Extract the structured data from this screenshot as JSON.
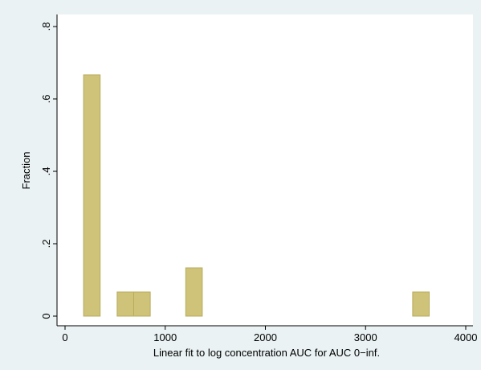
{
  "chart_data": {
    "type": "bar",
    "title": "",
    "xlabel": "Linear fit to log concentration AUC for AUC 0−inf.",
    "ylabel": "Fraction",
    "xlim": [
      0,
      4000
    ],
    "ylim": [
      0,
      0.8
    ],
    "x_ticks": [
      0,
      1000,
      2000,
      3000,
      4000
    ],
    "x_tick_labels": [
      "0",
      "1000",
      "2000",
      "3000",
      "4000"
    ],
    "y_ticks": [
      0,
      0.2,
      0.4,
      0.6,
      0.8
    ],
    "y_tick_labels": [
      "0",
      ".2",
      ".4",
      ".6",
      ".8"
    ],
    "grid": false,
    "legend": "none",
    "bin_width": 165,
    "bins": [
      {
        "start": 185,
        "value": 0.6667
      },
      {
        "start": 520,
        "value": 0.0667
      },
      {
        "start": 685,
        "value": 0.0667
      },
      {
        "start": 1205,
        "value": 0.1333
      },
      {
        "start": 3470,
        "value": 0.0667
      }
    ],
    "colors": {
      "bar_fill": "#cfc37a",
      "bar_stroke": "#b8ab5a",
      "background": "#eaf2f3",
      "plot_background": "#ffffff"
    }
  }
}
